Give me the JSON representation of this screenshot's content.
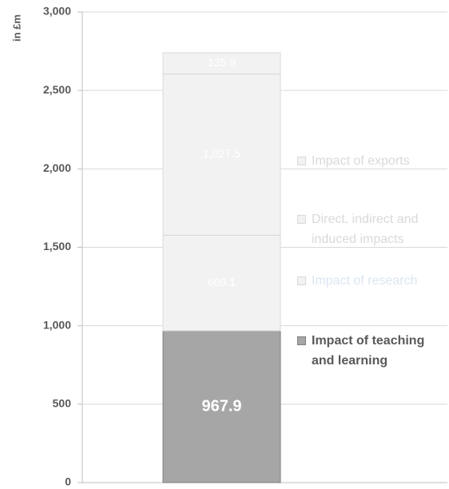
{
  "chart_data": {
    "type": "stacked_bar",
    "y_axis_label": "in £m",
    "categories": [
      null
    ],
    "series": [
      {
        "name": "Impact of teaching and learning",
        "color": "#a6a6a6",
        "label_color": "#595959",
        "values": [
          967.9
        ],
        "value_labels": [
          "967.9"
        ]
      },
      {
        "name": "Impact of research",
        "color": "#f2f2f2",
        "label_color": "#dbe5f1",
        "values": [
          609.1
        ],
        "value_labels": [
          "609.1"
        ]
      },
      {
        "name": "Direct, indirect and induced impacts",
        "color": "#f2f2f2",
        "label_color": "#d9d9d9",
        "values": [
          1027.5
        ],
        "value_labels": [
          "1,027.5"
        ]
      },
      {
        "name": "Impact of exports",
        "color": "#f2f2f2",
        "label_color": "#d9d9d9",
        "values": [
          135.9
        ],
        "value_labels": [
          "135.9"
        ]
      }
    ],
    "ylim": [
      0,
      3000
    ],
    "yticks": [
      0,
      500,
      {
        "value": 1000,
        "label": "1,000"
      },
      {
        "value": 1500,
        "label": "1,500"
      },
      {
        "value": 2000,
        "label": "2,000"
      },
      {
        "value": 2500,
        "label": "2,500"
      },
      {
        "value": 3000,
        "label": "3,000"
      }
    ],
    "grid": true,
    "legend": "right"
  }
}
